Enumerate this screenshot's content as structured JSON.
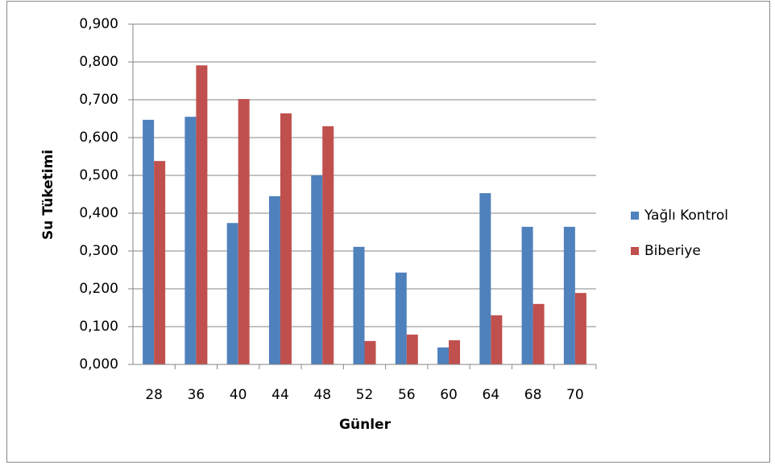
{
  "chart_data": {
    "type": "bar",
    "x_label": "Günler",
    "y_label": "Su Tüketimi",
    "categories": [
      "28",
      "36",
      "40",
      "44",
      "48",
      "52",
      "56",
      "60",
      "64",
      "68",
      "70"
    ],
    "series": [
      {
        "name": "Yağlı Kontrol",
        "color": "#4f81bd",
        "values": [
          0.647,
          0.655,
          0.374,
          0.445,
          0.5,
          0.311,
          0.243,
          0.045,
          0.453,
          0.364,
          0.364
        ]
      },
      {
        "name": "Biberiye",
        "color": "#c0504d",
        "values": [
          0.538,
          0.791,
          0.702,
          0.664,
          0.63,
          0.062,
          0.079,
          0.064,
          0.13,
          0.16,
          0.189
        ]
      }
    ],
    "ylim": [
      0,
      0.9
    ],
    "yticks": [
      {
        "value": 0,
        "label": "0,000"
      },
      {
        "value": 0.1,
        "label": "0,100"
      },
      {
        "value": 0.2,
        "label": "0,200"
      },
      {
        "value": 0.3,
        "label": "0,300"
      },
      {
        "value": 0.4,
        "label": "0,400"
      },
      {
        "value": 0.5,
        "label": "0,500"
      },
      {
        "value": 0.6,
        "label": "0,600"
      },
      {
        "value": 0.7,
        "label": "0,700"
      },
      {
        "value": 0.8,
        "label": "0,800"
      },
      {
        "value": 0.9,
        "label": "0,900"
      }
    ],
    "grid": true,
    "legend": "right"
  }
}
